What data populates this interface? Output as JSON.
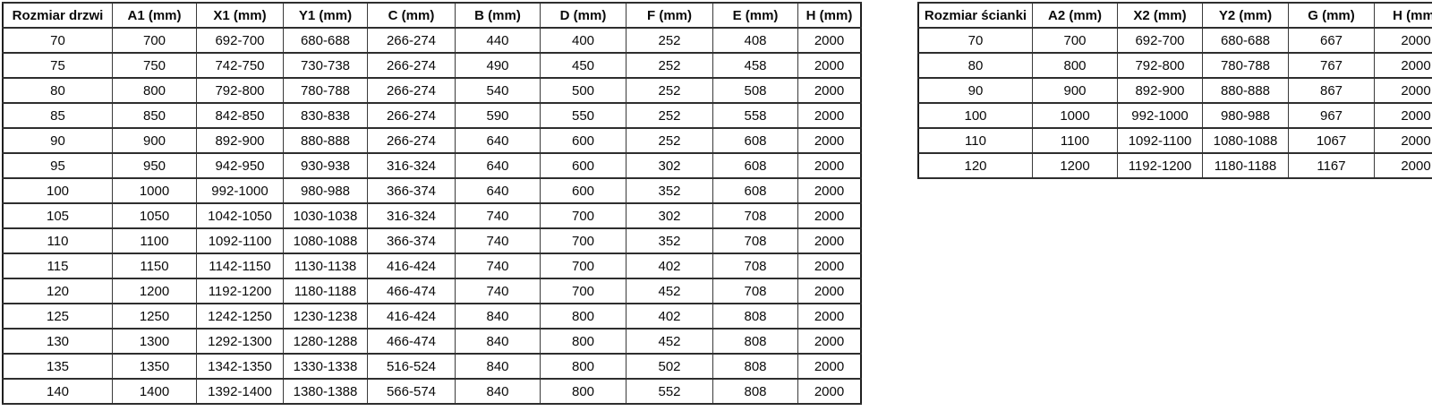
{
  "colors": {
    "background": "#ffffff",
    "border_outer": "#1f1f1f",
    "border_inner": "#3a3a3a",
    "text": "#0a0a0a"
  },
  "tables": {
    "doors": {
      "title": "Rozmiar drzwi",
      "headers": [
        "Rozmiar drzwi",
        "A1 (mm)",
        "X1 (mm)",
        "Y1 (mm)",
        "C (mm)",
        "B (mm)",
        "D (mm)",
        "F (mm)",
        "E (mm)",
        "H (mm)"
      ],
      "rows": [
        [
          "70",
          "700",
          "692-700",
          "680-688",
          "266-274",
          "440",
          "400",
          "252",
          "408",
          "2000"
        ],
        [
          "75",
          "750",
          "742-750",
          "730-738",
          "266-274",
          "490",
          "450",
          "252",
          "458",
          "2000"
        ],
        [
          "80",
          "800",
          "792-800",
          "780-788",
          "266-274",
          "540",
          "500",
          "252",
          "508",
          "2000"
        ],
        [
          "85",
          "850",
          "842-850",
          "830-838",
          "266-274",
          "590",
          "550",
          "252",
          "558",
          "2000"
        ],
        [
          "90",
          "900",
          "892-900",
          "880-888",
          "266-274",
          "640",
          "600",
          "252",
          "608",
          "2000"
        ],
        [
          "95",
          "950",
          "942-950",
          "930-938",
          "316-324",
          "640",
          "600",
          "302",
          "608",
          "2000"
        ],
        [
          "100",
          "1000",
          "992-1000",
          "980-988",
          "366-374",
          "640",
          "600",
          "352",
          "608",
          "2000"
        ],
        [
          "105",
          "1050",
          "1042-1050",
          "1030-1038",
          "316-324",
          "740",
          "700",
          "302",
          "708",
          "2000"
        ],
        [
          "110",
          "1100",
          "1092-1100",
          "1080-1088",
          "366-374",
          "740",
          "700",
          "352",
          "708",
          "2000"
        ],
        [
          "115",
          "1150",
          "1142-1150",
          "1130-1138",
          "416-424",
          "740",
          "700",
          "402",
          "708",
          "2000"
        ],
        [
          "120",
          "1200",
          "1192-1200",
          "1180-1188",
          "466-474",
          "740",
          "700",
          "452",
          "708",
          "2000"
        ],
        [
          "125",
          "1250",
          "1242-1250",
          "1230-1238",
          "416-424",
          "840",
          "800",
          "402",
          "808",
          "2000"
        ],
        [
          "130",
          "1300",
          "1292-1300",
          "1280-1288",
          "466-474",
          "840",
          "800",
          "452",
          "808",
          "2000"
        ],
        [
          "135",
          "1350",
          "1342-1350",
          "1330-1338",
          "516-524",
          "840",
          "800",
          "502",
          "808",
          "2000"
        ],
        [
          "140",
          "1400",
          "1392-1400",
          "1380-1388",
          "566-574",
          "840",
          "800",
          "552",
          "808",
          "2000"
        ]
      ]
    },
    "walls": {
      "title": "Rozmiar ścianki",
      "headers": [
        "Rozmiar ścianki",
        "A2 (mm)",
        "X2 (mm)",
        "Y2 (mm)",
        "G (mm)",
        "H (mm)"
      ],
      "rows": [
        [
          "70",
          "700",
          "692-700",
          "680-688",
          "667",
          "2000"
        ],
        [
          "80",
          "800",
          "792-800",
          "780-788",
          "767",
          "2000"
        ],
        [
          "90",
          "900",
          "892-900",
          "880-888",
          "867",
          "2000"
        ],
        [
          "100",
          "1000",
          "992-1000",
          "980-988",
          "967",
          "2000"
        ],
        [
          "110",
          "1100",
          "1092-1100",
          "1080-1088",
          "1067",
          "2000"
        ],
        [
          "120",
          "1200",
          "1192-1200",
          "1180-1188",
          "1167",
          "2000"
        ]
      ]
    }
  }
}
